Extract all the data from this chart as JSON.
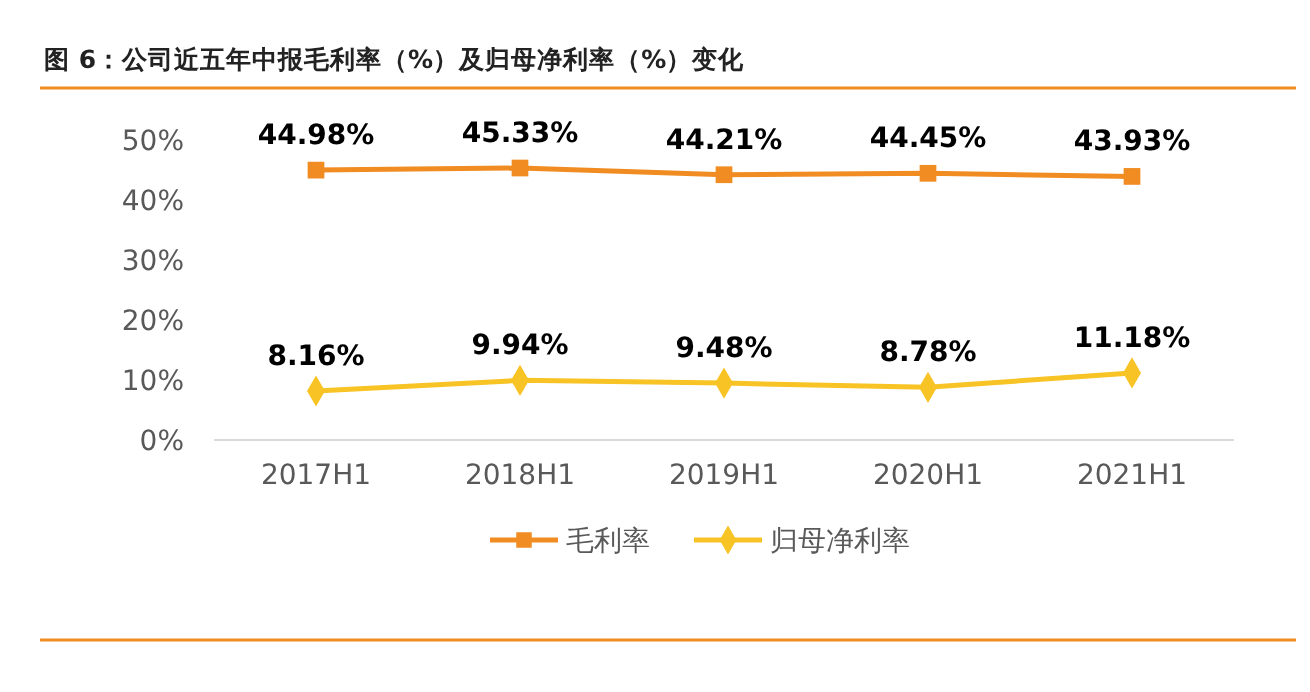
{
  "chart_data": {
    "type": "line",
    "title": "图 6：公司近五年中报毛利率（%）及归母净利率（%）变化",
    "categories": [
      "2017H1",
      "2018H1",
      "2019H1",
      "2020H1",
      "2021H1"
    ],
    "series": [
      {
        "name": "毛利率",
        "color": "#f08c22",
        "marker": "square",
        "values": [
          44.98,
          45.33,
          44.21,
          44.45,
          43.93
        ],
        "value_labels": [
          "44.98%",
          "45.33%",
          "44.21%",
          "44.45%",
          "43.93%"
        ]
      },
      {
        "name": "归母净利率",
        "color": "#f7c325",
        "marker": "diamond",
        "values": [
          8.16,
          9.94,
          9.48,
          8.78,
          11.18
        ],
        "value_labels": [
          "8.16%",
          "9.94%",
          "9.48%",
          "8.78%",
          "11.18%"
        ]
      }
    ],
    "ylim": [
      0,
      50
    ],
    "yticks": [
      {
        "value": 0,
        "label": "0%"
      },
      {
        "value": 10,
        "label": "10%"
      },
      {
        "value": 20,
        "label": "20%"
      },
      {
        "value": 30,
        "label": "30%"
      },
      {
        "value": 40,
        "label": "40%"
      },
      {
        "value": 50,
        "label": "50%"
      }
    ],
    "legend": "bottom",
    "grid": false
  }
}
